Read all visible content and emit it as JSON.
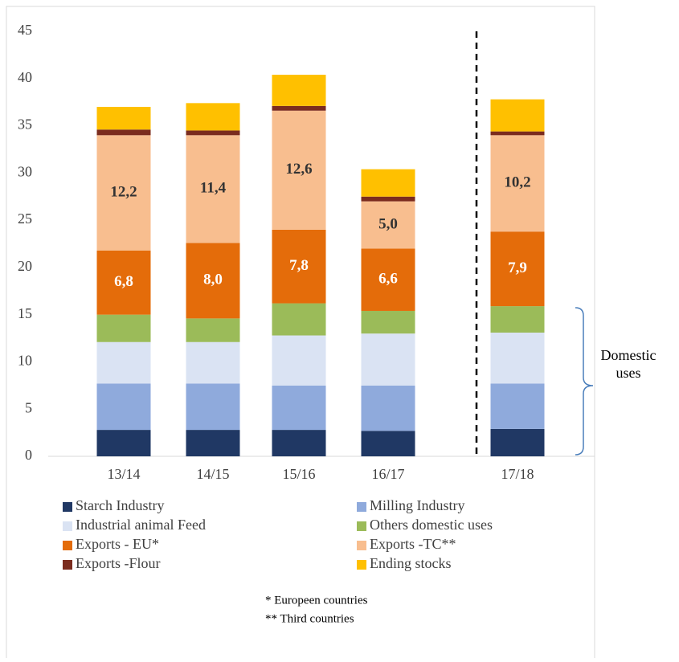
{
  "chart_data": {
    "type": "stacked_bar",
    "categories": [
      "13/14",
      "14/15",
      "15/16",
      "16/17",
      "17/18"
    ],
    "series": [
      {
        "name": "Starch Industry",
        "color": "#203864",
        "values": [
          2.8,
          2.8,
          2.8,
          2.7,
          2.9
        ]
      },
      {
        "name": "Milling Industry",
        "color": "#8faadc",
        "values": [
          4.9,
          4.9,
          4.7,
          4.8,
          4.8
        ]
      },
      {
        "name": "Industrial animal Feed",
        "color": "#dae3f3",
        "values": [
          4.4,
          4.4,
          5.3,
          5.5,
          5.4
        ]
      },
      {
        "name": "Others domestic uses",
        "color": "#9bbb59",
        "values": [
          2.9,
          2.5,
          3.4,
          2.4,
          2.8
        ]
      },
      {
        "name": "Exports - EU*",
        "color": "#e46c0a",
        "values": [
          6.8,
          8.0,
          7.8,
          6.6,
          7.9
        ],
        "value_labels": [
          "6,8",
          "8,0",
          "7,8",
          "6,6",
          "7,9"
        ],
        "label_color": "#ffffff"
      },
      {
        "name": "Exports -TC**",
        "color": "#f8be8f",
        "values": [
          12.2,
          11.4,
          12.6,
          5.0,
          10.2
        ],
        "value_labels": [
          "12,2",
          "11,4",
          "12,6",
          "5,0",
          "10,2"
        ],
        "label_color": "#333333"
      },
      {
        "name": "Exports -Flour",
        "color": "#7b2c1e",
        "values": [
          0.6,
          0.5,
          0.5,
          0.5,
          0.4
        ]
      },
      {
        "name": "Ending stocks",
        "color": "#ffc000",
        "values": [
          2.4,
          2.9,
          3.3,
          2.9,
          3.4
        ]
      }
    ],
    "ylim": [
      0,
      45
    ],
    "yticks": [
      0,
      5,
      10,
      15,
      20,
      25,
      30,
      35,
      40,
      45
    ],
    "grid": false,
    "annotation": "Domestic uses",
    "footnotes": [
      "* Europeen countries",
      "** Third countries"
    ]
  }
}
